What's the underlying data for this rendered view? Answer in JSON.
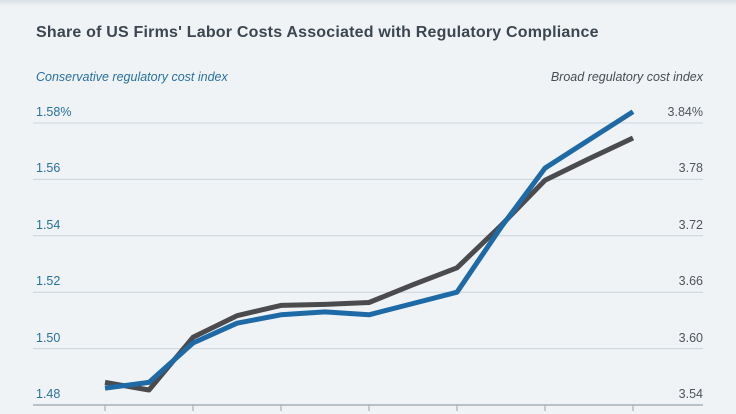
{
  "chart_data": {
    "type": "line",
    "title": "Share of US Firms' Labor Costs Associated with Regulatory Compliance",
    "grid": true,
    "legend_position": "axis-titles-above-plot",
    "x_axis": {
      "tick_count": 7,
      "labels_visible": false,
      "tick_labels": []
    },
    "left_axis": {
      "title": "Conservative regulatory cost index",
      "color": "#27719f",
      "min": 1.48,
      "max": 1.58,
      "tick_labels": [
        "1.58%",
        "1.56",
        "1.54",
        "1.52",
        "1.50",
        "1.48"
      ],
      "tick_values": [
        1.58,
        1.56,
        1.54,
        1.52,
        1.5,
        1.48
      ]
    },
    "right_axis": {
      "title": "Broad regulatory cost index",
      "color": "#474d53",
      "min": 3.54,
      "max": 3.84,
      "tick_labels": [
        "3.84%",
        "3.78",
        "3.72",
        "3.66",
        "3.60",
        "3.54"
      ],
      "tick_values": [
        3.84,
        3.78,
        3.72,
        3.66,
        3.6,
        3.54
      ]
    },
    "series": [
      {
        "name": "Broad regulatory cost index",
        "axis": "right",
        "color": "#4b4b4e",
        "values": [
          3.564,
          3.556,
          3.612,
          3.635,
          3.646,
          3.647,
          3.649,
          3.668,
          3.686,
          3.731,
          3.779,
          3.802,
          3.824
        ]
      },
      {
        "name": "Conservative regulatory cost index",
        "axis": "left",
        "color": "#1e6aa7",
        "values": [
          1.486,
          1.488,
          1.502,
          1.509,
          1.512,
          1.513,
          1.512,
          1.516,
          1.52,
          1.543,
          1.564,
          1.574,
          1.584
        ]
      }
    ],
    "colors": {
      "background": "#eff3f6",
      "gridline": "#ccd4db",
      "axis_line": "#a6b0b8",
      "title_text": "#3c4650"
    }
  }
}
